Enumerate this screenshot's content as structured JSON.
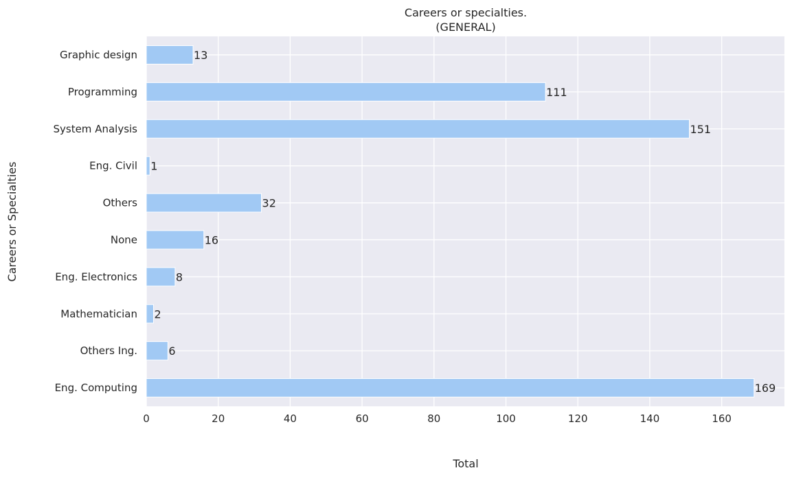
{
  "chart_data": {
    "type": "bar",
    "orientation": "horizontal",
    "title": "Careers or specialties.",
    "subtitle": "(GENERAL)",
    "xlabel": "Total",
    "ylabel": "Careers or Specialties",
    "categories": [
      "Graphic design",
      "Programming",
      "System Analysis",
      "Eng. Civil",
      "Others",
      "None",
      "Eng. Electronics",
      "Mathematician",
      "Others Ing.",
      "Eng. Computing"
    ],
    "values": [
      13,
      111,
      151,
      1,
      32,
      16,
      8,
      2,
      6,
      169
    ],
    "xlim": [
      0,
      177.45
    ],
    "xticks": [
      "0",
      "20",
      "40",
      "60",
      "80",
      "100",
      "120",
      "140",
      "160"
    ],
    "grid": true,
    "bar_color": "#a1c9f4",
    "background_color": "#eaeaf2",
    "grid_color": "#ffffff"
  }
}
